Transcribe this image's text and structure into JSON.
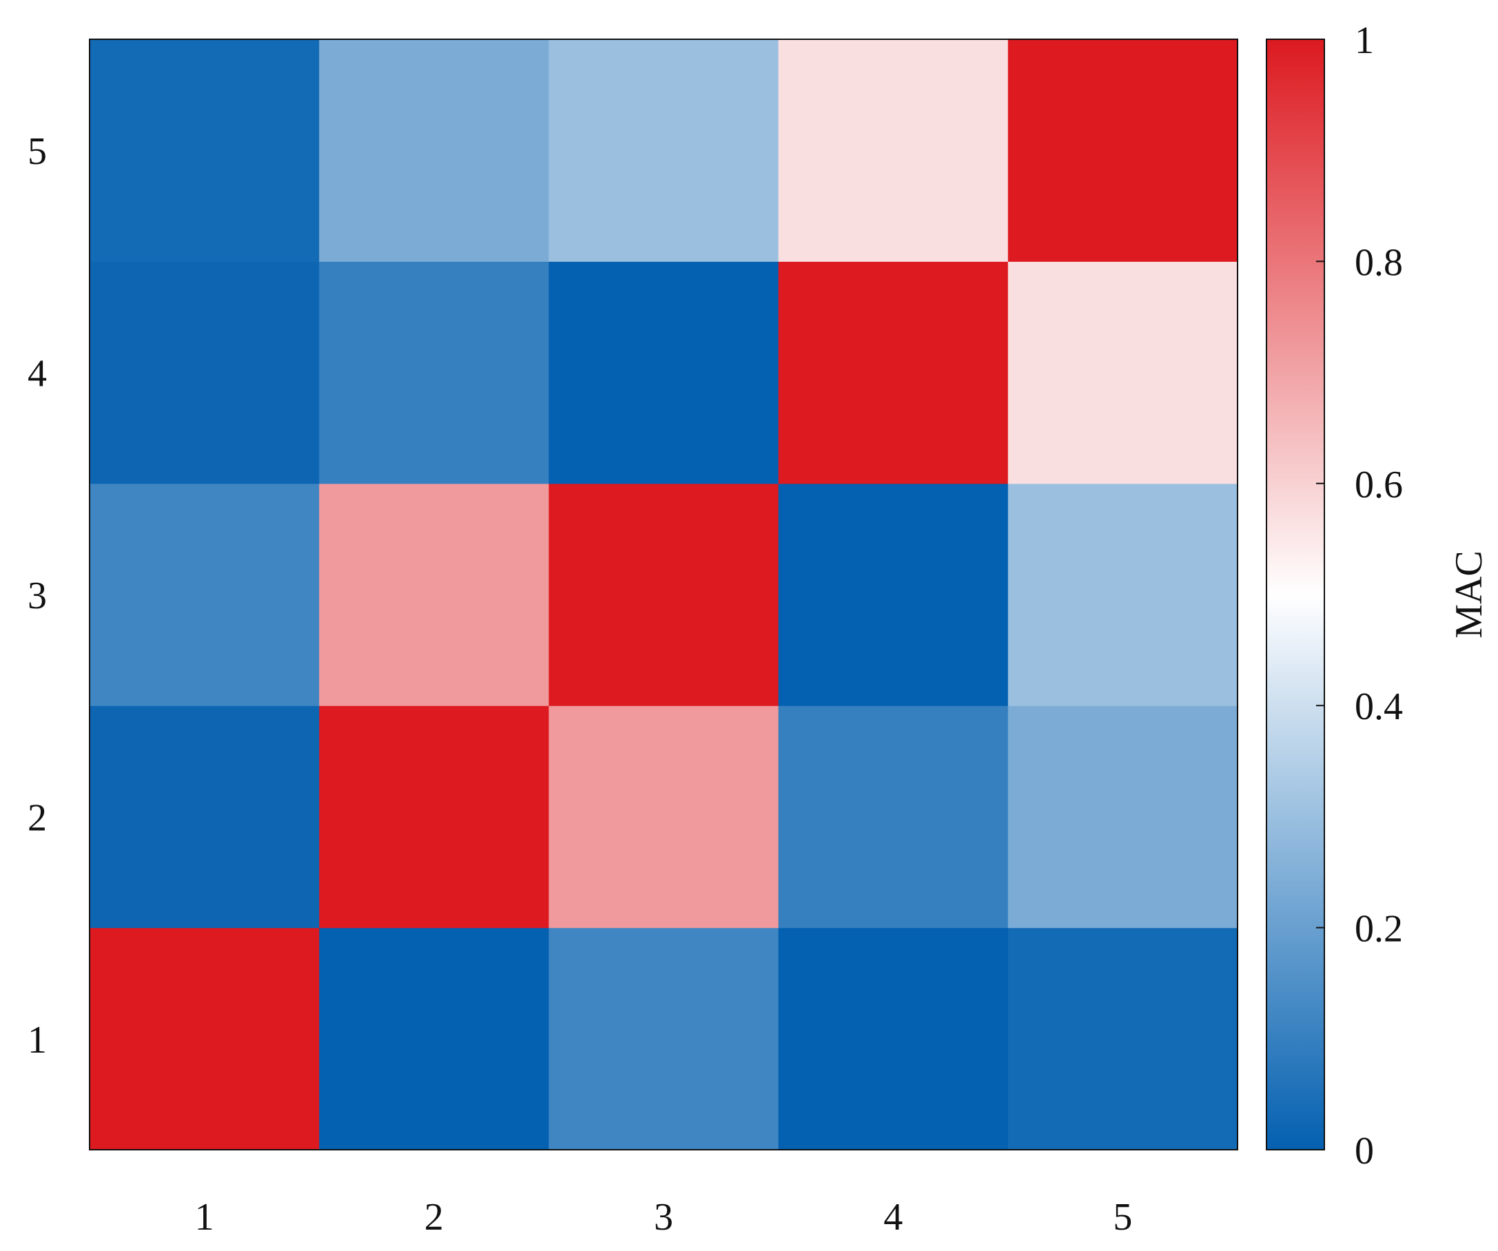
{
  "chart_data": {
    "type": "heatmap",
    "title": "",
    "xlabel": "",
    "ylabel": "",
    "x_categories": [
      "1",
      "2",
      "3",
      "4",
      "5"
    ],
    "y_categories": [
      "1",
      "2",
      "3",
      "4",
      "5"
    ],
    "values": [
      [
        1.0,
        0.0,
        0.12,
        0.0,
        0.03
      ],
      [
        0.02,
        1.0,
        0.72,
        0.1,
        0.24
      ],
      [
        0.12,
        0.72,
        1.0,
        0.0,
        0.3
      ],
      [
        0.02,
        0.1,
        0.0,
        1.0,
        0.57
      ],
      [
        0.03,
        0.24,
        0.3,
        0.57,
        1.0
      ]
    ],
    "colorbar": {
      "label": "MAC",
      "range": [
        0,
        1
      ],
      "ticks": [
        0,
        0.2,
        0.4,
        0.6,
        0.8,
        1
      ],
      "tick_labels": [
        "0",
        "0.2",
        "0.4",
        "0.6",
        "0.8",
        "1"
      ],
      "colors": [
        "#0460b0",
        "#ffffff",
        "#dc1a20"
      ]
    }
  }
}
